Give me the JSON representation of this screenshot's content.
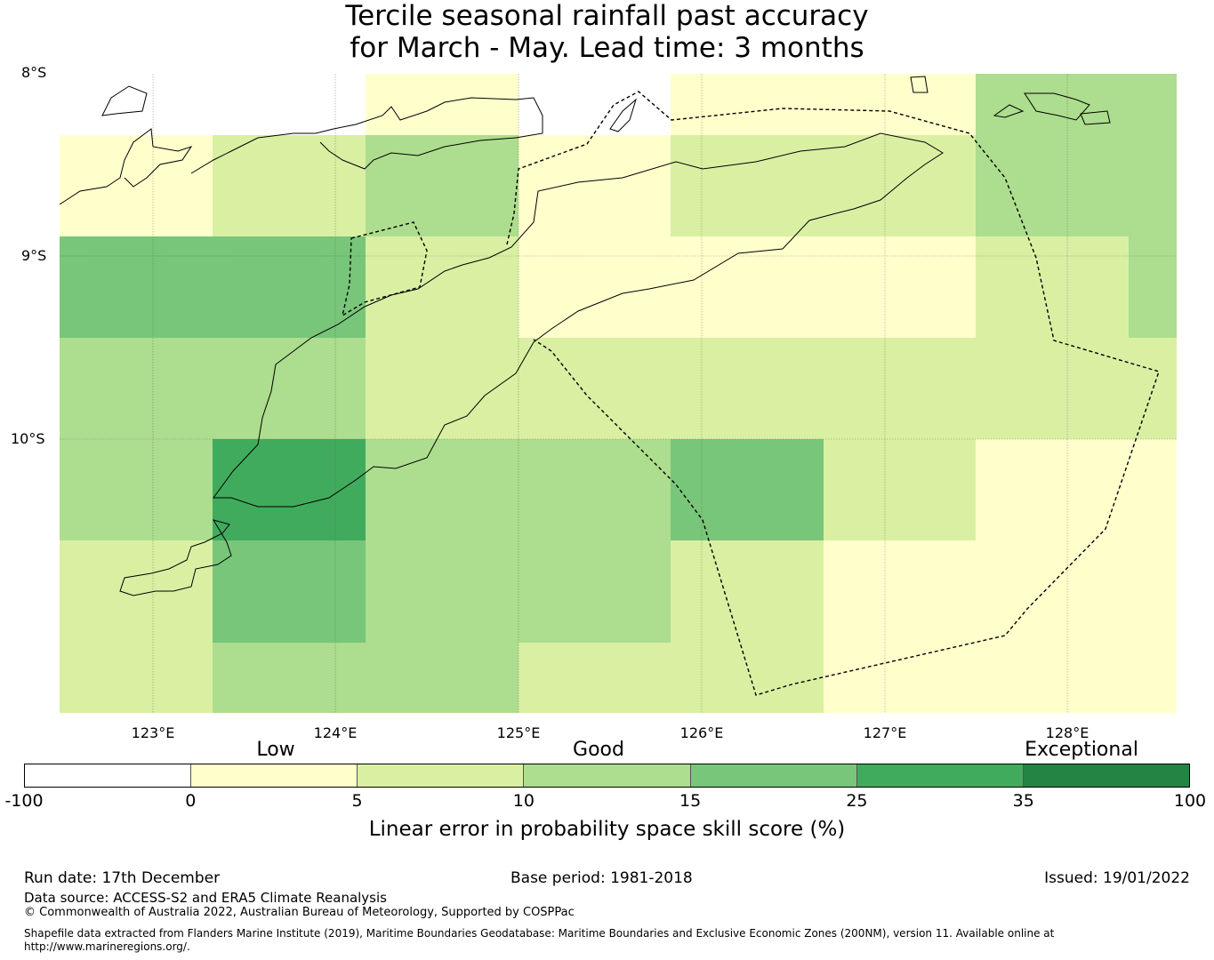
{
  "title": {
    "line1": "Tercile seasonal rainfall past accuracy",
    "line2": "for March - May. Lead time: 3 months"
  },
  "map": {
    "lat_labels": [
      "8°S",
      "9°S",
      "10°S"
    ],
    "lon_labels": [
      "123°E",
      "124°E",
      "125°E",
      "126°E",
      "127°E",
      "128°E"
    ],
    "grid_category_index_rows": [
      [
        0,
        0,
        1,
        0,
        1,
        1,
        3,
        3
      ],
      [
        1,
        2,
        3,
        1,
        2,
        2,
        3,
        3
      ],
      [
        4,
        4,
        2,
        1,
        1,
        1,
        2,
        3
      ],
      [
        3,
        3,
        2,
        2,
        2,
        2,
        2,
        2
      ],
      [
        3,
        5,
        3,
        3,
        4,
        2,
        1,
        1
      ],
      [
        2,
        4,
        3,
        3,
        2,
        1,
        1,
        1
      ],
      [
        2,
        3,
        3,
        2,
        2,
        1,
        1,
        1
      ]
    ]
  },
  "legend": {
    "categories": [
      "Low",
      "Good",
      "Exceptional"
    ],
    "bins_colors": [
      "#ffffff",
      "#ffffcc",
      "#d9f0a3",
      "#addd8e",
      "#78c679",
      "#41ab5d",
      "#238443"
    ],
    "ticks": [
      "-100",
      "0",
      "5",
      "10",
      "15",
      "25",
      "35",
      "100"
    ],
    "label": "Linear error in probability space skill score (%)"
  },
  "footer": {
    "run_date": "Run date: 17th December",
    "base_period": "Base period: 1981-2018",
    "issued": "Issued: 19/01/2022",
    "data_source": "Data source: ACCESS-S2 and ERA5 Climate Reanalysis",
    "copyright": "© Commonwealth of Australia 2022, Australian Bureau of Meteorology, Supported by COSPPac",
    "shapefile_line1": "Shapefile data extracted from Flanders Marine Institute (2019), Maritime Boundaries Geodatabase: Maritime Boundaries and Exclusive Economic Zones (200NM), version 11. Available online at",
    "shapefile_line2": "http://www.marineregions.org/."
  }
}
